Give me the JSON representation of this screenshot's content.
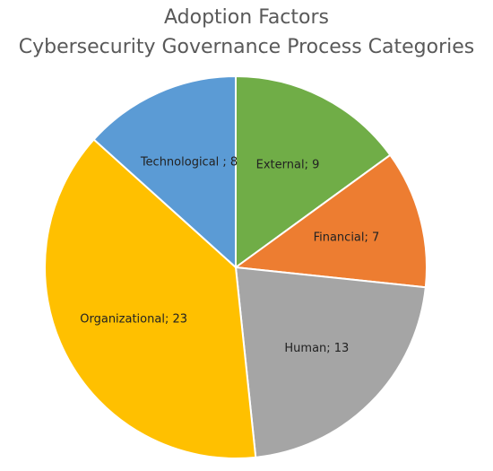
{
  "chart_data": {
    "type": "pie",
    "title": "Adoption Factors",
    "subtitle": "Cybersecurity Governance Process Categories",
    "values": [
      9,
      7,
      13,
      23,
      8
    ],
    "value_labels": [
      "External; 9",
      "Financial; 7",
      "Human; 13",
      "Organizational; 23",
      "Technological ; 8"
    ],
    "colors": [
      "#70ad47",
      "#ed7d31",
      "#a5a5a5",
      "#ffc000",
      "#5b9bd5"
    ]
  }
}
